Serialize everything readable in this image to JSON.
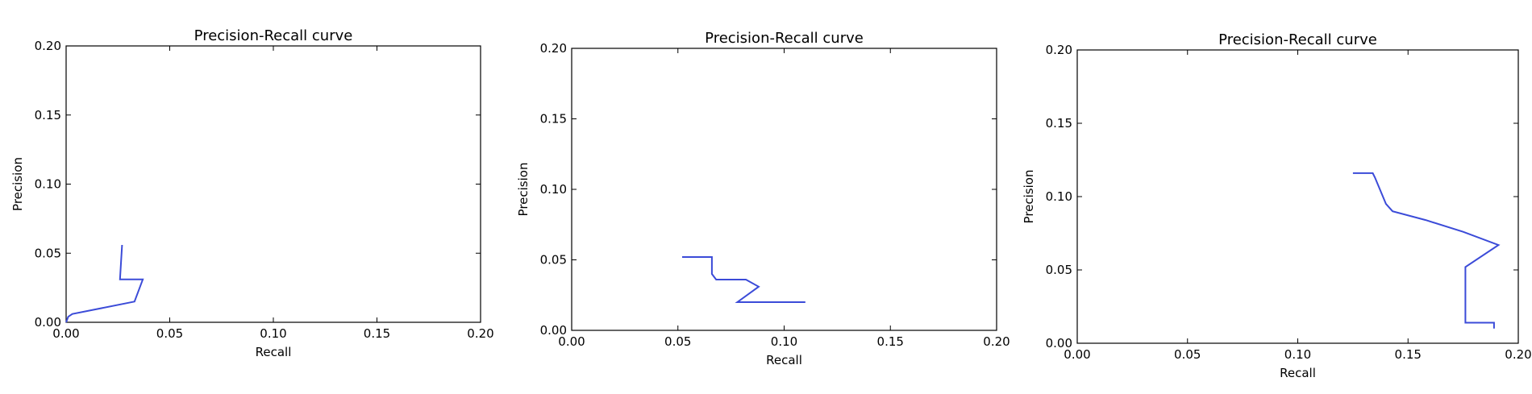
{
  "chart_data": [
    {
      "type": "line",
      "title": "Precision-Recall curve",
      "xlabel": "Recall",
      "ylabel": "Precision",
      "xlim": [
        0,
        0.2
      ],
      "ylim": [
        0,
        0.2
      ],
      "xticks": [
        "0.00",
        "0.05",
        "0.10",
        "0.15",
        "0.20"
      ],
      "yticks": [
        "0.00",
        "0.05",
        "0.10",
        "0.15",
        "0.20"
      ],
      "grid": false,
      "color": "#3b4bd8",
      "series": [
        {
          "x": [
            0.027,
            0.026,
            0.026,
            0.037,
            0.033,
            0.003,
            0.001,
            0.0
          ],
          "y": [
            0.056,
            0.031,
            0.031,
            0.031,
            0.015,
            0.006,
            0.004,
            0.0
          ]
        }
      ]
    },
    {
      "type": "line",
      "title": "Precision-Recall curve",
      "xlabel": "Recall",
      "ylabel": "Precision",
      "xlim": [
        0,
        0.2
      ],
      "ylim": [
        0,
        0.2
      ],
      "xticks": [
        "0.00",
        "0.05",
        "0.10",
        "0.15",
        "0.20"
      ],
      "yticks": [
        "0.00",
        "0.05",
        "0.10",
        "0.15",
        "0.20"
      ],
      "grid": false,
      "color": "#3b4bd8",
      "series": [
        {
          "x": [
            0.052,
            0.066,
            0.066,
            0.068,
            0.082,
            0.088,
            0.078,
            0.11
          ],
          "y": [
            0.052,
            0.052,
            0.04,
            0.036,
            0.036,
            0.031,
            0.02,
            0.02
          ]
        }
      ]
    },
    {
      "type": "line",
      "title": "Precision-Recall curve",
      "xlabel": "Recall",
      "ylabel": "Precision",
      "xlim": [
        0,
        0.2
      ],
      "ylim": [
        0,
        0.2
      ],
      "xticks": [
        "0.00",
        "0.05",
        "0.10",
        "0.15",
        "0.20"
      ],
      "yticks": [
        "0.00",
        "0.05",
        "0.10",
        "0.15",
        "0.20"
      ],
      "grid": false,
      "color": "#3b4bd8",
      "series": [
        {
          "x": [
            0.125,
            0.134,
            0.135,
            0.14,
            0.143,
            0.158,
            0.175,
            0.191,
            0.176,
            0.176,
            0.189,
            0.189
          ],
          "y": [
            0.116,
            0.116,
            0.113,
            0.095,
            0.09,
            0.084,
            0.076,
            0.067,
            0.052,
            0.014,
            0.014,
            0.01
          ]
        }
      ]
    }
  ]
}
